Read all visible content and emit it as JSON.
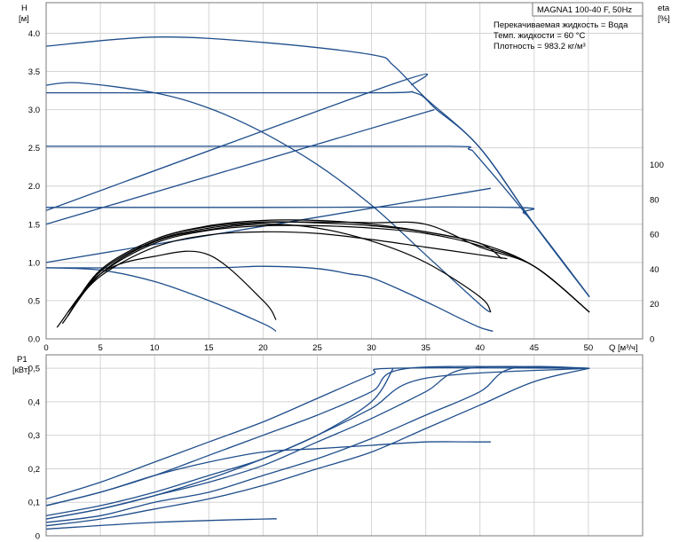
{
  "chart_data": [
    {
      "type": "line",
      "title": "MAGNA1 100-40 F, 50Hz",
      "annotations": [
        "Перекачиваемая жидкость = Вода",
        "Темп. жидкости = 60 °C",
        "Плотность = 983.2 кг/м³"
      ],
      "ylabel_left": [
        "H",
        "[м]"
      ],
      "ylabel_right": [
        "eta",
        "[%]"
      ],
      "xlabel": "Q [м³/ч]",
      "xlim": [
        0,
        55
      ],
      "ylim": [
        0,
        4.4
      ],
      "ylim_right": [
        0,
        100
      ],
      "x_ticks": [
        "0",
        "5",
        "10",
        "15",
        "20",
        "25",
        "30",
        "35",
        "40",
        "45",
        "50"
      ],
      "y_ticks": [
        "0.0",
        "0.5",
        "1.0",
        "1.5",
        "2.0",
        "2.5",
        "3.0",
        "3.5",
        "4.0"
      ],
      "y_right_ticks": [
        "0",
        "20",
        "40",
        "60",
        "80",
        "100"
      ],
      "grid": true,
      "series": [
        {
          "color": "#1f4e8c",
          "x": [
            0,
            10,
            20,
            30,
            32,
            35,
            40,
            45,
            50.1
          ],
          "y": [
            3.83,
            3.95,
            3.88,
            3.72,
            3.58,
            3.15,
            2.5,
            1.5,
            0.55
          ]
        },
        {
          "color": "#1f4e8c",
          "x": [
            0,
            3,
            10,
            15,
            20,
            25,
            30,
            35,
            40,
            41
          ],
          "y": [
            3.32,
            3.35,
            3.22,
            3.02,
            2.7,
            2.28,
            1.75,
            1.1,
            0.45,
            0.35
          ]
        },
        {
          "color": "#1f4e8c",
          "x": [
            0,
            30,
            34,
            36,
            40,
            45,
            50.1
          ],
          "y": [
            3.22,
            3.22,
            3.22,
            3.0,
            2.5,
            1.5,
            0.55
          ]
        },
        {
          "color": "#1f4e8c",
          "x": [
            0,
            15,
            20,
            25,
            28,
            30,
            33,
            36,
            38,
            40,
            41.2
          ],
          "y": [
            0.93,
            0.93,
            0.95,
            0.92,
            0.85,
            0.8,
            0.62,
            0.42,
            0.28,
            0.15,
            0.1
          ]
        },
        {
          "color": "#1f4e8c",
          "x": [
            0,
            5,
            10,
            15,
            20,
            21.2
          ],
          "y": [
            0.93,
            0.9,
            0.75,
            0.5,
            0.2,
            0.1
          ]
        },
        {
          "color": "#1f4e8c",
          "x": [
            0,
            20,
            37.3,
            39,
            40,
            45,
            50.1
          ],
          "y": [
            2.52,
            2.52,
            2.52,
            2.48,
            2.35,
            1.5,
            0.55
          ]
        },
        {
          "color": "#1f4e8c",
          "x": [
            0,
            20,
            43,
            44,
            45,
            50.1
          ],
          "y": [
            1.72,
            1.72,
            1.72,
            1.65,
            1.5,
            0.55
          ]
        },
        {
          "color": "#1f4e8c",
          "x": [
            0,
            32.3,
            33.7
          ],
          "y": [
            1.68,
            3.35,
            3.32
          ]
        },
        {
          "color": "#1f4e8c",
          "x": [
            0,
            35.8
          ],
          "y": [
            1.5,
            3.0
          ]
        },
        {
          "color": "#1f4e8c",
          "x": [
            0,
            41
          ],
          "y": [
            1.0,
            1.97
          ]
        },
        {
          "color": "#000000",
          "x": [
            1,
            5,
            10,
            15,
            20,
            21.2
          ],
          "y": [
            0.15,
            0.85,
            1.08,
            1.1,
            0.5,
            0.25
          ]
        },
        {
          "color": "#000000",
          "x": [
            1.5,
            5,
            10,
            15,
            20,
            25,
            30,
            35,
            40,
            41
          ],
          "y": [
            0.2,
            0.85,
            1.27,
            1.43,
            1.5,
            1.45,
            1.28,
            1.0,
            0.55,
            0.35
          ]
        },
        {
          "color": "#000000",
          "x": [
            2,
            5,
            10,
            15,
            20,
            25,
            30,
            35,
            40,
            42
          ],
          "y": [
            0.3,
            0.9,
            1.3,
            1.47,
            1.53,
            1.52,
            1.48,
            1.4,
            1.25,
            1.05
          ]
        },
        {
          "color": "#000000",
          "x": [
            2,
            5,
            10,
            15,
            20,
            25,
            30,
            35,
            40,
            45,
            50.1
          ],
          "y": [
            0.3,
            0.9,
            1.3,
            1.48,
            1.55,
            1.55,
            1.5,
            1.4,
            1.25,
            0.95,
            0.35
          ]
        },
        {
          "color": "#000000",
          "x": [
            2,
            5,
            10,
            15,
            20,
            25,
            30,
            35,
            40,
            45,
            50.1
          ],
          "y": [
            0.3,
            0.88,
            1.28,
            1.45,
            1.52,
            1.53,
            1.52,
            1.5,
            1.2,
            0.95,
            0.35
          ]
        },
        {
          "color": "#000000",
          "x": [
            2,
            5,
            10,
            15,
            20,
            25,
            30,
            35,
            40,
            45,
            50.1
          ],
          "y": [
            0.35,
            0.85,
            1.25,
            1.42,
            1.48,
            1.48,
            1.45,
            1.38,
            1.22,
            0.95,
            0.35
          ]
        },
        {
          "color": "#000000",
          "x": [
            2,
            5,
            10,
            15,
            20,
            25,
            30,
            35,
            40,
            42.5
          ],
          "y": [
            0.35,
            0.82,
            1.2,
            1.36,
            1.4,
            1.38,
            1.3,
            1.2,
            1.1,
            1.05
          ]
        }
      ]
    },
    {
      "type": "line",
      "ylabel": [
        "P1",
        "[кВт]"
      ],
      "xlim": [
        0,
        55
      ],
      "ylim": [
        0,
        0.54
      ],
      "y_ticks": [
        "0",
        "0,1",
        "0,2",
        "0,3",
        "0,4",
        "0,5"
      ],
      "grid": true,
      "series": [
        {
          "color": "#1f4e8c",
          "x": [
            0,
            5,
            10,
            15,
            20,
            25,
            30,
            32,
            50.1
          ],
          "y": [
            0.11,
            0.16,
            0.22,
            0.28,
            0.34,
            0.41,
            0.48,
            0.5,
            0.5
          ]
        },
        {
          "color": "#1f4e8c",
          "x": [
            0,
            5,
            10,
            15,
            20,
            25,
            30,
            33.5,
            50.1
          ],
          "y": [
            0.09,
            0.13,
            0.18,
            0.24,
            0.3,
            0.36,
            0.43,
            0.5,
            0.5
          ]
        },
        {
          "color": "#1f4e8c",
          "x": [
            0,
            5,
            10,
            15,
            20,
            25,
            30,
            35,
            50.1
          ],
          "y": [
            0.06,
            0.09,
            0.13,
            0.18,
            0.23,
            0.3,
            0.38,
            0.47,
            0.5
          ]
        },
        {
          "color": "#1f4e8c",
          "x": [
            0,
            5,
            10,
            15,
            20,
            25,
            30,
            35,
            39,
            50.1
          ],
          "y": [
            0.05,
            0.08,
            0.12,
            0.16,
            0.21,
            0.28,
            0.35,
            0.43,
            0.5,
            0.5
          ]
        },
        {
          "color": "#1f4e8c",
          "x": [
            0,
            5,
            10,
            15,
            20,
            25,
            30,
            35,
            40,
            43,
            50.1
          ],
          "y": [
            0.04,
            0.06,
            0.1,
            0.13,
            0.18,
            0.23,
            0.29,
            0.36,
            0.43,
            0.5,
            0.5
          ]
        },
        {
          "color": "#1f4e8c",
          "x": [
            0,
            5,
            10,
            15,
            20,
            25,
            30,
            35,
            40,
            45,
            50.1
          ],
          "y": [
            0.03,
            0.05,
            0.08,
            0.11,
            0.15,
            0.2,
            0.25,
            0.32,
            0.39,
            0.46,
            0.5
          ]
        },
        {
          "color": "#1f4e8c",
          "x": [
            0,
            5,
            10,
            15,
            20,
            25,
            30,
            35,
            40,
            41
          ],
          "y": [
            0.09,
            0.13,
            0.18,
            0.22,
            0.25,
            0.26,
            0.27,
            0.28,
            0.28,
            0.28
          ]
        },
        {
          "color": "#1f4e8c",
          "x": [
            0,
            10,
            20,
            21.2
          ],
          "y": [
            0.02,
            0.04,
            0.05,
            0.05
          ]
        },
        {
          "color": "#1f4e8c",
          "x": [
            0,
            5,
            10,
            15,
            20,
            25,
            30,
            32
          ],
          "y": [
            0.05,
            0.08,
            0.12,
            0.17,
            0.23,
            0.3,
            0.4,
            0.5
          ]
        }
      ]
    }
  ]
}
